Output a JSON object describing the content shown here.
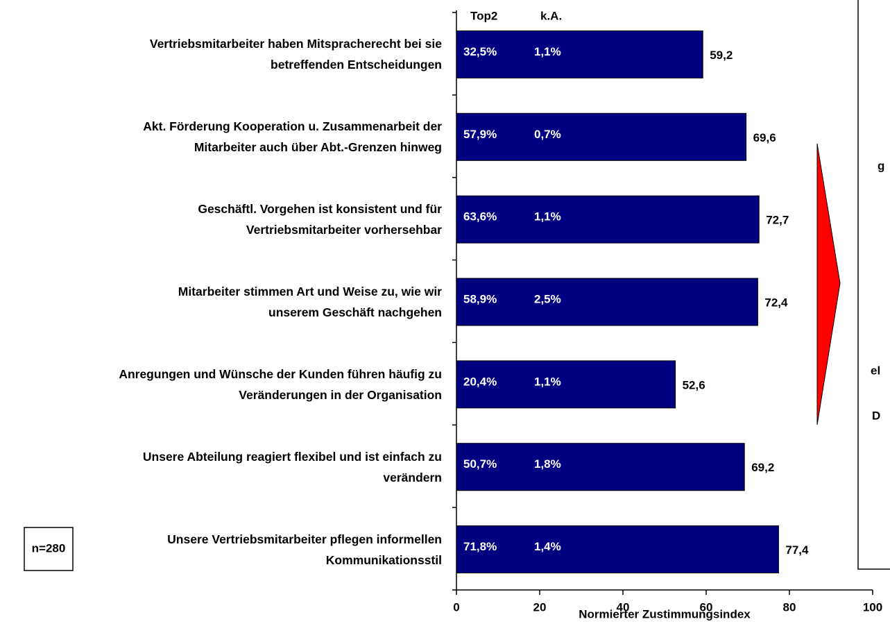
{
  "chart_data": {
    "type": "bar",
    "orientation": "horizontal",
    "categories": [
      "Vertriebsmitarbeiter haben Mitspracherecht bei sie\nbetreffenden Entscheidungen",
      "Akt. Förderung Kooperation u. Zusammenarbeit der\nMitarbeiter auch über Abt.-Grenzen hinweg",
      "Geschäftl. Vorgehen ist konsistent und für\nVertriebsmitarbeiter vorhersehbar",
      "Mitarbeiter stimmen Art und Weise zu, wie wir\nunserem Geschäft nachgehen",
      "Anregungen und Wünsche der Kunden führen häufig zu\nVeränderungen in der Organisation",
      "Unsere Abteilung reagiert flexibel und ist einfach zu\nverändern",
      "Unsere Vertriebsmitarbeiter pflegen informellen\nKommunikationsstil"
    ],
    "values": [
      59.2,
      69.6,
      72.7,
      72.4,
      52.6,
      69.2,
      77.4
    ],
    "value_labels": [
      "59,2",
      "69,6",
      "72,7",
      "72,4",
      "52,6",
      "69,2",
      "77,4"
    ],
    "color": "#000080",
    "columns": [
      {
        "name": "Top2",
        "labels": [
          "32,5%",
          "57,9%",
          "63,6%",
          "58,9%",
          "20,4%",
          "50,7%",
          "71,8%"
        ]
      },
      {
        "name": "k.A.",
        "labels": [
          "1,1%",
          "0,7%",
          "1,1%",
          "2,5%",
          "1,1%",
          "1,8%",
          "1,4%"
        ]
      }
    ],
    "xlabel": "Normierter Zustimmungsindex",
    "xlim": [
      0,
      100
    ],
    "xticks": [
      0,
      20,
      40,
      60,
      80,
      100
    ],
    "note": "n=280",
    "side_texts": [
      "g",
      "el",
      "D"
    ]
  }
}
